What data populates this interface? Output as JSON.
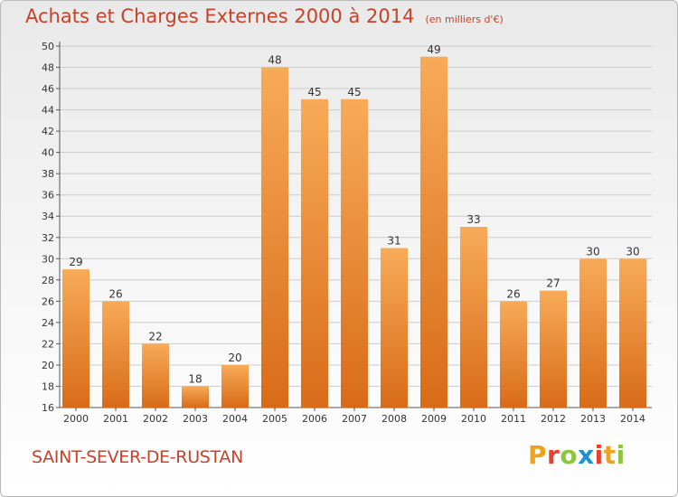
{
  "title": "Achats et Charges Externes 2000 à 2014",
  "subtitle": "(en milliers d'€)",
  "commune": "SAINT-SEVER-DE-RUSTAN",
  "logo": {
    "letters": [
      "P",
      "r",
      "o",
      "x",
      "i",
      "t",
      "i"
    ],
    "colors": [
      "#f0a21c",
      "#e8412b",
      "#8cc63f",
      "#1e90d6",
      "#e8412b",
      "#f0a21c",
      "#8cc63f"
    ]
  },
  "colors": {
    "title": "#c8412a",
    "bar_top": "#f7ab58",
    "bar_bottom": "#d96b18",
    "grid": "#cccccc"
  },
  "chart_data": {
    "type": "bar",
    "title": "Achats et Charges Externes 2000 à 2014",
    "subtitle": "(en milliers d'€)",
    "categories": [
      "2000",
      "2001",
      "2002",
      "2003",
      "2004",
      "2005",
      "2006",
      "2007",
      "2008",
      "2009",
      "2010",
      "2011",
      "2012",
      "2013",
      "2014"
    ],
    "values": [
      29,
      26,
      22,
      18,
      20,
      48,
      45,
      45,
      31,
      49,
      33,
      26,
      27,
      30,
      30
    ],
    "data_labels": [
      "29",
      "26",
      "22",
      "18",
      "20",
      "48",
      "45",
      "45",
      "31",
      "49",
      "33",
      "26",
      "27",
      "30",
      "30"
    ],
    "ylim": [
      16,
      50
    ],
    "yticks": [
      "16",
      "18",
      "20",
      "22",
      "24",
      "26",
      "28",
      "30",
      "32",
      "34",
      "36",
      "38",
      "40",
      "42",
      "44",
      "46",
      "48",
      "50"
    ],
    "grid": true,
    "legend": "none"
  }
}
